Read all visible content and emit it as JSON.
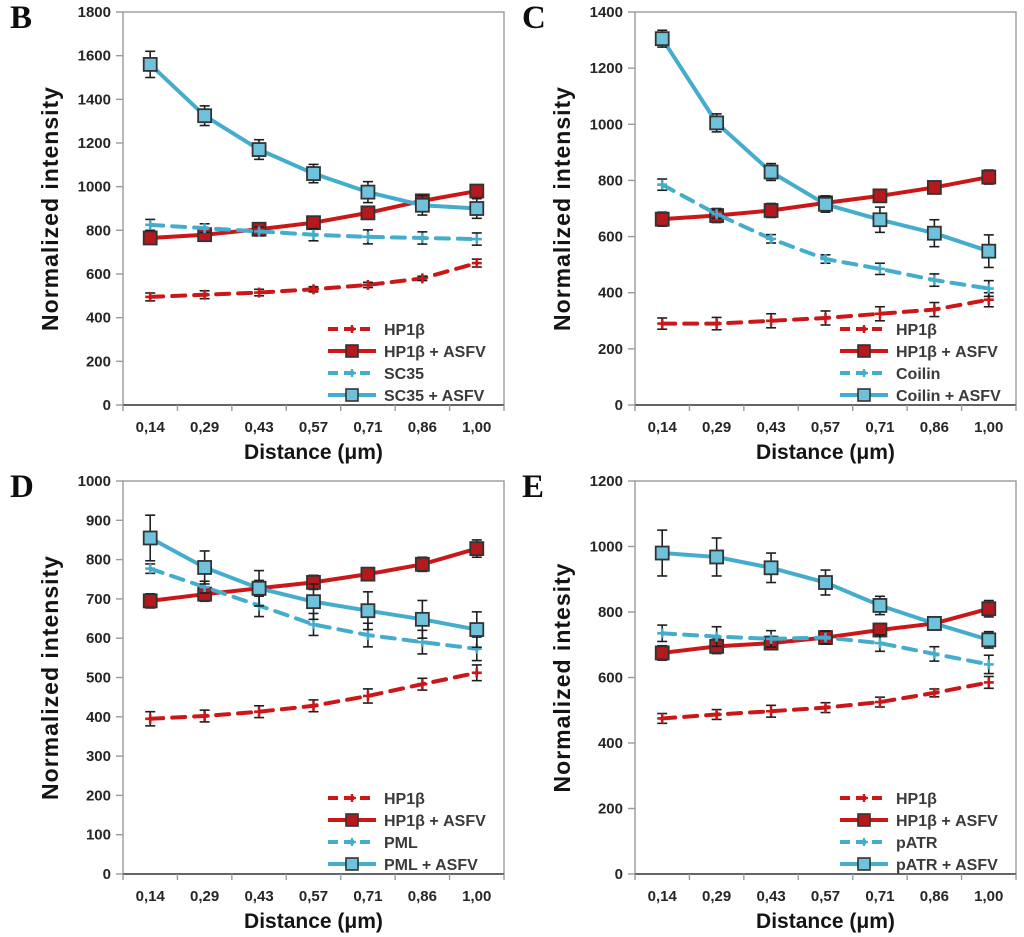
{
  "figure": {
    "panels": [
      {
        "label": "B"
      },
      {
        "label": "C"
      },
      {
        "label": "D"
      },
      {
        "label": "E"
      }
    ]
  },
  "palette": {
    "red_line": "#cc1719",
    "red_marker_fill": "#b5181d",
    "blue_line": "#44adcd",
    "blue_marker_fill": "#6fc2dc",
    "marker_outline": "#333333",
    "error_bar": "#1f1f1f",
    "axis_gray": "#9a9a9a",
    "axis_dark": "#555555",
    "tick_label": "#262626",
    "legend_text": "#3a3a3a"
  },
  "chart_data": [
    {
      "type": "line",
      "panel": "B",
      "xlabel": "Distance (μm)",
      "ylabel": "Normalized intensity",
      "x_tick_labels": [
        "0,14",
        "0,29",
        "0,43",
        "0,57",
        "0,71",
        "0,86",
        "1,00"
      ],
      "x_numeric": [
        0.14,
        0.29,
        0.43,
        0.57,
        0.71,
        0.86,
        1.0
      ],
      "ylim": [
        0,
        1800
      ],
      "ytick_step": 200,
      "grid": false,
      "legend_position": "inside-bottom-right",
      "series": [
        {
          "name": "HP1β",
          "color": "#cc1719",
          "marker_fill": "#b5181d",
          "style": "dashed",
          "marker": "plus",
          "values": [
            495,
            505,
            515,
            530,
            550,
            580,
            650
          ],
          "errors": [
            18,
            18,
            15,
            12,
            12,
            10,
            18
          ]
        },
        {
          "name": "HP1β + ASFV",
          "color": "#cc1719",
          "marker_fill": "#b5181d",
          "style": "solid",
          "marker": "square",
          "values": [
            765,
            780,
            805,
            835,
            880,
            935,
            980
          ],
          "errors": [
            18,
            15,
            15,
            14,
            12,
            14,
            12
          ]
        },
        {
          "name": "SC35",
          "color": "#44adcd",
          "marker_fill": "#6fc2dc",
          "style": "dashed",
          "marker": "plus",
          "values": [
            825,
            810,
            795,
            780,
            770,
            765,
            760
          ],
          "errors": [
            25,
            20,
            20,
            28,
            32,
            28,
            28
          ]
        },
        {
          "name": "SC35 + ASFV",
          "color": "#44adcd",
          "marker_fill": "#6fc2dc",
          "style": "solid",
          "marker": "square",
          "values": [
            1560,
            1325,
            1170,
            1060,
            975,
            915,
            900
          ],
          "errors": [
            60,
            45,
            45,
            42,
            48,
            45,
            45
          ]
        }
      ]
    },
    {
      "type": "line",
      "panel": "C",
      "xlabel": "Distance (μm)",
      "ylabel": "Normalized intensity",
      "x_tick_labels": [
        "0,14",
        "0,29",
        "0,43",
        "0,57",
        "0,71",
        "0,86",
        "1,00"
      ],
      "x_numeric": [
        0.14,
        0.29,
        0.43,
        0.57,
        0.71,
        0.86,
        1.0
      ],
      "ylim": [
        0,
        1400
      ],
      "ytick_step": 200,
      "grid": false,
      "legend_position": "inside-bottom-right",
      "series": [
        {
          "name": "HP1β",
          "color": "#cc1719",
          "marker_fill": "#b5181d",
          "style": "dashed",
          "marker": "plus",
          "values": [
            290,
            290,
            300,
            310,
            325,
            340,
            375
          ],
          "errors": [
            20,
            22,
            25,
            25,
            25,
            25,
            25
          ]
        },
        {
          "name": "HP1β + ASFV",
          "color": "#cc1719",
          "marker_fill": "#b5181d",
          "style": "solid",
          "marker": "square",
          "values": [
            662,
            675,
            693,
            720,
            745,
            775,
            812
          ],
          "errors": [
            25,
            25,
            25,
            25,
            20,
            20,
            25
          ]
        },
        {
          "name": "Coilin",
          "color": "#44adcd",
          "marker_fill": "#6fc2dc",
          "style": "dashed",
          "marker": "plus",
          "values": [
            785,
            680,
            592,
            520,
            485,
            445,
            415
          ],
          "errors": [
            20,
            15,
            15,
            15,
            20,
            22,
            28
          ]
        },
        {
          "name": "Coilin + ASFV",
          "color": "#44adcd",
          "marker_fill": "#6fc2dc",
          "style": "solid",
          "marker": "square",
          "values": [
            1305,
            1005,
            830,
            715,
            660,
            612,
            548
          ],
          "errors": [
            30,
            32,
            30,
            28,
            45,
            48,
            58
          ]
        }
      ]
    },
    {
      "type": "line",
      "panel": "D",
      "xlabel": "Distance (μm)",
      "ylabel": "Normalized intensity",
      "x_tick_labels": [
        "0,14",
        "0,29",
        "0,43",
        "0,57",
        "0,71",
        "0,86",
        "1,00"
      ],
      "x_numeric": [
        0.14,
        0.29,
        0.43,
        0.57,
        0.71,
        0.86,
        1.0
      ],
      "ylim": [
        0,
        1000
      ],
      "ytick_step": 100,
      "grid": false,
      "legend_position": "inside-bottom-right",
      "series": [
        {
          "name": "HP1β",
          "color": "#cc1719",
          "marker_fill": "#b5181d",
          "style": "dashed",
          "marker": "plus",
          "values": [
            395,
            402,
            413,
            428,
            453,
            483,
            512
          ],
          "errors": [
            18,
            15,
            15,
            15,
            18,
            15,
            20
          ]
        },
        {
          "name": "HP1β + ASFV",
          "color": "#cc1719",
          "marker_fill": "#b5181d",
          "style": "solid",
          "marker": "square",
          "values": [
            695,
            712,
            727,
            742,
            763,
            788,
            828
          ],
          "errors": [
            18,
            18,
            20,
            18,
            15,
            18,
            22
          ]
        },
        {
          "name": "PML",
          "color": "#44adcd",
          "marker_fill": "#6fc2dc",
          "style": "dashed",
          "marker": "plus",
          "values": [
            777,
            730,
            683,
            635,
            608,
            590,
            573
          ],
          "errors": [
            12,
            15,
            28,
            28,
            30,
            30,
            30
          ]
        },
        {
          "name": "PML + ASFV",
          "color": "#44adcd",
          "marker_fill": "#6fc2dc",
          "style": "solid",
          "marker": "square",
          "values": [
            855,
            780,
            727,
            693,
            670,
            648,
            622
          ],
          "errors": [
            58,
            42,
            45,
            45,
            48,
            48,
            45
          ]
        }
      ]
    },
    {
      "type": "line",
      "panel": "E",
      "xlabel": "Distance (μm)",
      "ylabel": "Normalized intesity",
      "x_tick_labels": [
        "0,14",
        "0,29",
        "0,43",
        "0,57",
        "0,71",
        "0,86",
        "1,00"
      ],
      "x_numeric": [
        0.14,
        0.29,
        0.43,
        0.57,
        0.71,
        0.86,
        1.0
      ],
      "ylim": [
        0,
        1200
      ],
      "ytick_step": 200,
      "grid": false,
      "legend_position": "inside-bottom-right",
      "series": [
        {
          "name": "HP1β",
          "color": "#cc1719",
          "marker_fill": "#b5181d",
          "style": "dashed",
          "marker": "plus",
          "values": [
            475,
            487,
            497,
            508,
            525,
            553,
            585
          ],
          "errors": [
            15,
            15,
            18,
            15,
            15,
            12,
            18
          ]
        },
        {
          "name": "HP1β + ASFV",
          "color": "#cc1719",
          "marker_fill": "#b5181d",
          "style": "solid",
          "marker": "square",
          "values": [
            675,
            695,
            705,
            722,
            745,
            765,
            810
          ],
          "errors": [
            22,
            22,
            20,
            20,
            20,
            18,
            25
          ]
        },
        {
          "name": "pATR",
          "color": "#44adcd",
          "marker_fill": "#6fc2dc",
          "style": "dashed",
          "marker": "plus",
          "values": [
            735,
            725,
            718,
            722,
            705,
            672,
            640
          ],
          "errors": [
            25,
            30,
            25,
            20,
            25,
            22,
            28
          ]
        },
        {
          "name": "pATR + ASFV",
          "color": "#44adcd",
          "marker_fill": "#6fc2dc",
          "style": "solid",
          "marker": "square",
          "values": [
            980,
            968,
            935,
            890,
            820,
            765,
            715
          ],
          "errors": [
            70,
            58,
            45,
            38,
            28,
            15,
            25
          ]
        }
      ]
    }
  ]
}
